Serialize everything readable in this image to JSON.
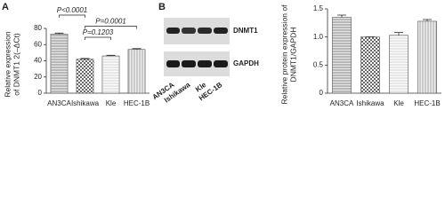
{
  "chart_data": [
    {
      "type": "bar",
      "panel_label": "A",
      "ylabel": [
        "Relative expression",
        "of DNMT1 2(–ΔCt)"
      ],
      "categories": [
        "AN3CA",
        "Ishikawa",
        "Kle",
        "HEC-1B"
      ],
      "values": [
        73,
        42,
        46,
        54
      ],
      "errors": [
        1.2,
        0.8,
        0.8,
        1
      ],
      "ylim": [
        0,
        80
      ],
      "yticks": [
        0,
        20,
        40,
        60,
        80
      ],
      "annotations": [
        {
          "text": "P<0.0001",
          "from": "AN3CA",
          "to": "Ishikawa"
        },
        {
          "text": "P=0.0001",
          "from": "Ishikawa",
          "to": "HEC-1B"
        },
        {
          "text": "P=0.1203",
          "from": "Ishikawa",
          "to": "Kle"
        }
      ]
    },
    {
      "type": "bar",
      "ylabel": [
        "Relative protein expression of",
        "DNMT1/GAPDH"
      ],
      "categories": [
        "AN3CA",
        "Ishikawa",
        "Kle",
        "HEC-1B"
      ],
      "values": [
        1.35,
        1.0,
        1.03,
        1.28
      ],
      "errors": [
        0.04,
        0,
        0.05,
        0.03
      ],
      "ylim": [
        0,
        1.5
      ],
      "yticks": [
        0,
        0.5,
        {
          "value": 1,
          "label": "1.0"
        },
        1.5
      ]
    }
  ],
  "blot": {
    "panel_label": "B",
    "bands": [
      "DNMT1",
      "GAPDH"
    ],
    "lanes": [
      "AN3CA",
      "Ishikawa",
      "Kle",
      "HEC-1B"
    ]
  }
}
